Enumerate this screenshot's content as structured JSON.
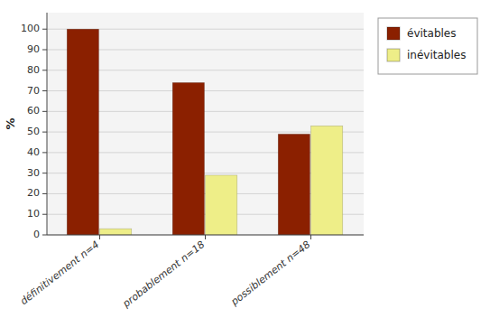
{
  "chart_data": {
    "type": "bar",
    "categories": [
      "définitivement n=4",
      "probablement n=18",
      "possiblement n=48"
    ],
    "series": [
      {
        "name": "évitables",
        "color": "#8B2000",
        "values": [
          100,
          74,
          49
        ]
      },
      {
        "name": "inévitables",
        "color": "#EEEE88",
        "values": [
          3,
          29,
          53
        ]
      }
    ],
    "ylabel": "%",
    "ylim": [
      0,
      108
    ],
    "yticks": [
      0,
      10,
      20,
      30,
      40,
      50,
      60,
      70,
      80,
      90,
      100
    ],
    "grid": true,
    "legend": "right"
  }
}
